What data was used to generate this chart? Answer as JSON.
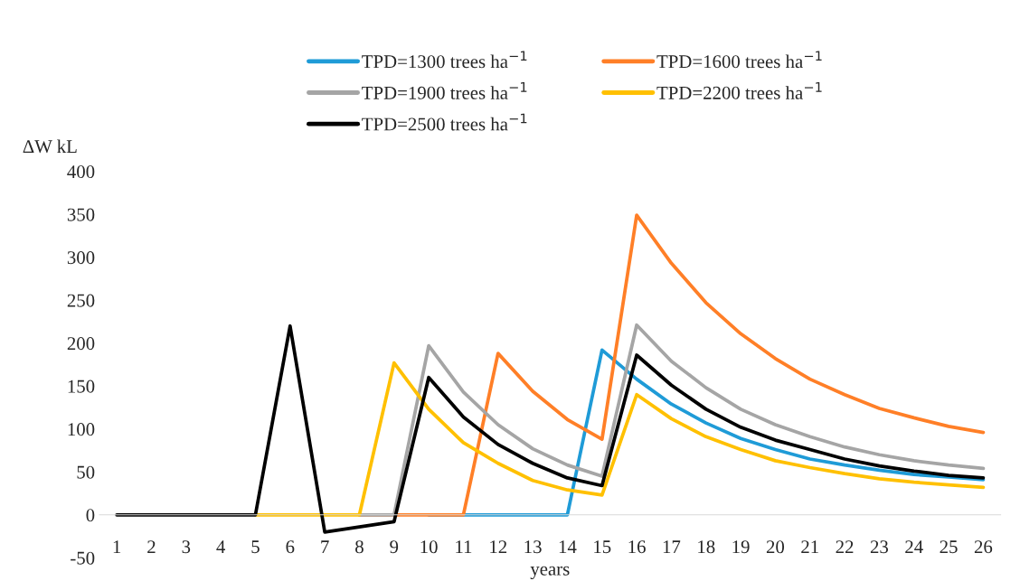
{
  "chart_data": {
    "type": "line",
    "xlabel": "years",
    "ylabel": "ΔW kL",
    "categories": [
      "1",
      "2",
      "3",
      "4",
      "5",
      "6",
      "7",
      "8",
      "9",
      "10",
      "11",
      "12",
      "13",
      "14",
      "15",
      "16",
      "17",
      "18",
      "19",
      "20",
      "21",
      "22",
      "23",
      "24",
      "25",
      "26"
    ],
    "series": [
      {
        "name": "TPD=1300 trees ha$^{−1}$",
        "color": "#1f9bd7",
        "values": [
          null,
          null,
          null,
          null,
          null,
          null,
          null,
          null,
          null,
          0,
          0,
          0,
          0,
          0,
          192,
          158,
          129,
          107,
          89,
          76,
          65,
          58,
          52,
          47,
          44,
          41
        ]
      },
      {
        "name": "TPD=1600 trees ha$^{−1}$",
        "color": "#ff7f27",
        "values": [
          null,
          null,
          null,
          null,
          null,
          null,
          null,
          0,
          0,
          0,
          0,
          188,
          144,
          111,
          88,
          349,
          293,
          247,
          211,
          182,
          158,
          140,
          124,
          113,
          103,
          96
        ]
      },
      {
        "name": "TPD=1900 trees ha$^{−1}$",
        "color": "#a5a5a5",
        "values": [
          null,
          null,
          null,
          null,
          null,
          null,
          null,
          0,
          0,
          197,
          143,
          105,
          77,
          58,
          45,
          221,
          179,
          148,
          123,
          105,
          91,
          79,
          70,
          63,
          58,
          54
        ]
      },
      {
        "name": "TPD=2200 trees ha$^{−1}$",
        "color": "#ffc000",
        "values": [
          null,
          null,
          null,
          null,
          0,
          0,
          0,
          0,
          177,
          123,
          84,
          60,
          40,
          29,
          23,
          140,
          112,
          91,
          76,
          63,
          55,
          48,
          42,
          38,
          35,
          32
        ]
      },
      {
        "name": "TPD=2500 trees ha$^{−1}$",
        "color": "#000000",
        "values": [
          0,
          0,
          0,
          0,
          0,
          220,
          -20,
          -14,
          -8,
          160,
          114,
          82,
          60,
          43,
          34,
          186,
          151,
          123,
          102,
          87,
          76,
          65,
          57,
          51,
          46,
          43
        ]
      }
    ],
    "ylim": [
      -50,
      400
    ],
    "yticks": [
      -50,
      0,
      50,
      100,
      150,
      200,
      250,
      300,
      350,
      400
    ],
    "grid": false,
    "legend": "top",
    "line_style": "solid",
    "marker": "none"
  }
}
